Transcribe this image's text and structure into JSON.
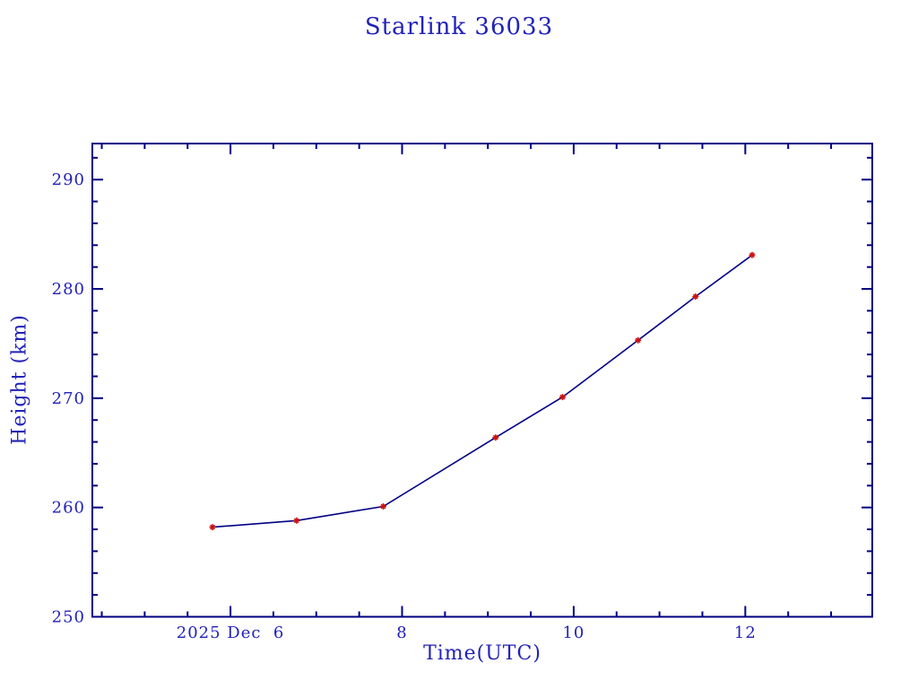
{
  "page": {
    "background": "#ffffff"
  },
  "chart_data": {
    "type": "line",
    "title": "Starlink 36033",
    "xlabel": "Time(UTC)",
    "ylabel": "Height (km)",
    "x_range": [
      4.39,
      13.48
    ],
    "y_range": [
      250,
      293.3
    ],
    "x_major_ticks": [
      {
        "value": 6,
        "label": "2025 Dec  6"
      },
      {
        "value": 8,
        "label": "8"
      },
      {
        "value": 10,
        "label": "10"
      },
      {
        "value": 12,
        "label": "12"
      }
    ],
    "x_minor_step": 0.5,
    "y_major_ticks": [
      {
        "value": 250,
        "label": "250"
      },
      {
        "value": 260,
        "label": "260"
      },
      {
        "value": 270,
        "label": "270"
      },
      {
        "value": 280,
        "label": "280"
      },
      {
        "value": 290,
        "label": "290"
      }
    ],
    "y_minor_step": 2,
    "grid": false,
    "legend": "none",
    "series": [
      {
        "name": "height",
        "marker": "asterisk",
        "x": [
          5.79,
          6.77,
          7.78,
          9.09,
          9.87,
          10.75,
          11.42,
          12.08
        ],
        "y": [
          258.2,
          258.8,
          260.1,
          266.4,
          270.1,
          275.3,
          279.3,
          283.1
        ]
      }
    ],
    "colors": {
      "background": "#ffffff",
      "frame": "#000084",
      "line": "#000084",
      "text": "#2222b8",
      "marker": "#cc1111"
    }
  }
}
